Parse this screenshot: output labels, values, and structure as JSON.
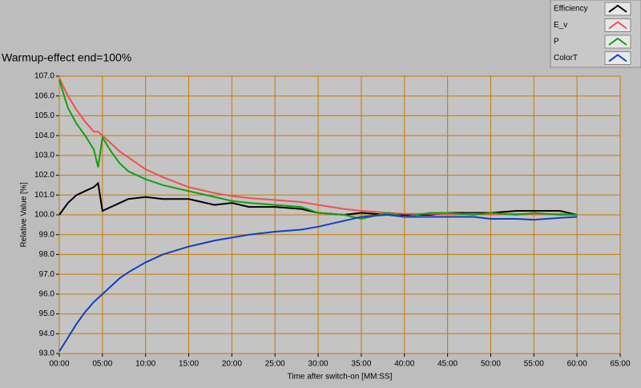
{
  "chart_data": {
    "type": "line",
    "title": "Warmup-effect end=100%",
    "x_label": "Time after switch-on [MM:SS]",
    "y_label": "Relative Value [%]",
    "x": [
      0,
      1,
      2,
      3,
      4,
      4.5,
      5,
      6,
      7,
      8,
      10,
      12,
      15,
      18,
      20,
      22,
      25,
      28,
      30,
      33,
      35,
      38,
      40,
      43,
      45,
      48,
      50,
      53,
      55,
      58,
      60
    ],
    "series": [
      {
        "name": "Efficiency",
        "color": "#000000",
        "values": [
          100.0,
          100.6,
          101.0,
          101.2,
          101.4,
          101.6,
          100.2,
          100.4,
          100.6,
          100.8,
          100.9,
          100.8,
          100.8,
          100.5,
          100.6,
          100.4,
          100.4,
          100.3,
          100.1,
          100.0,
          100.1,
          100.0,
          100.0,
          100.0,
          100.1,
          100.1,
          100.1,
          100.2,
          100.2,
          100.2,
          100.0
        ]
      },
      {
        "name": "E_v",
        "color": "#f05050",
        "values": [
          106.9,
          106.0,
          105.3,
          104.7,
          104.2,
          104.2,
          104.0,
          103.6,
          103.2,
          102.9,
          102.3,
          101.9,
          101.4,
          101.1,
          100.95,
          100.85,
          100.75,
          100.65,
          100.5,
          100.3,
          100.2,
          100.1,
          100.05,
          100.05,
          100.05,
          100.05,
          100.05,
          100.05,
          100.05,
          100.05,
          100.0
        ]
      },
      {
        "name": "P",
        "color": "#10a010",
        "values": [
          106.8,
          105.4,
          104.6,
          104.0,
          103.3,
          102.4,
          103.9,
          103.2,
          102.6,
          102.2,
          101.8,
          101.5,
          101.2,
          100.9,
          100.7,
          100.6,
          100.5,
          100.4,
          100.1,
          100.0,
          99.8,
          100.1,
          99.9,
          100.1,
          100.1,
          100.0,
          100.1,
          100.0,
          100.1,
          100.0,
          100.0
        ]
      },
      {
        "name": "ColorT",
        "color": "#1040c0",
        "values": [
          93.1,
          93.8,
          94.5,
          95.1,
          95.6,
          95.8,
          96.0,
          96.4,
          96.8,
          97.1,
          97.6,
          98.0,
          98.4,
          98.7,
          98.85,
          99.0,
          99.15,
          99.25,
          99.4,
          99.7,
          99.9,
          100.0,
          99.9,
          99.9,
          99.9,
          99.9,
          99.8,
          99.8,
          99.75,
          99.85,
          99.9
        ]
      }
    ],
    "xlim": [
      0,
      65
    ],
    "xticks": [
      {
        "value": 0,
        "label": "00:00"
      },
      {
        "value": 5,
        "label": "05:00"
      },
      {
        "value": 10,
        "label": "10:00"
      },
      {
        "value": 15,
        "label": "15:00"
      },
      {
        "value": 20,
        "label": "20:00"
      },
      {
        "value": 25,
        "label": "25:00"
      },
      {
        "value": 30,
        "label": "30:00"
      },
      {
        "value": 35,
        "label": "35:00"
      },
      {
        "value": 40,
        "label": "40:00"
      },
      {
        "value": 45,
        "label": "45:00"
      },
      {
        "value": 50,
        "label": "50:00"
      },
      {
        "value": 55,
        "label": "55:00"
      },
      {
        "value": 60,
        "label": "60:00"
      },
      {
        "value": 65,
        "label": "65:00"
      }
    ],
    "ylim": [
      93,
      107
    ],
    "yticks": [
      {
        "value": 93,
        "label": "93.0"
      },
      {
        "value": 94,
        "label": "94.0"
      },
      {
        "value": 95,
        "label": "95.0"
      },
      {
        "value": 96,
        "label": "96.0"
      },
      {
        "value": 97,
        "label": "97.0"
      },
      {
        "value": 98,
        "label": "98.0"
      },
      {
        "value": 99,
        "label": "99.0"
      },
      {
        "value": 100,
        "label": "100.0"
      },
      {
        "value": 101,
        "label": "101.0"
      },
      {
        "value": 102,
        "label": "102.0"
      },
      {
        "value": 103,
        "label": "103.0"
      },
      {
        "value": 104,
        "label": "104.0"
      },
      {
        "value": 105,
        "label": "105.0"
      },
      {
        "value": 106,
        "label": "106.0"
      },
      {
        "value": 107,
        "label": "107.0"
      }
    ],
    "grid": true,
    "grid_color": "#c87a00",
    "legend": "top-right"
  }
}
